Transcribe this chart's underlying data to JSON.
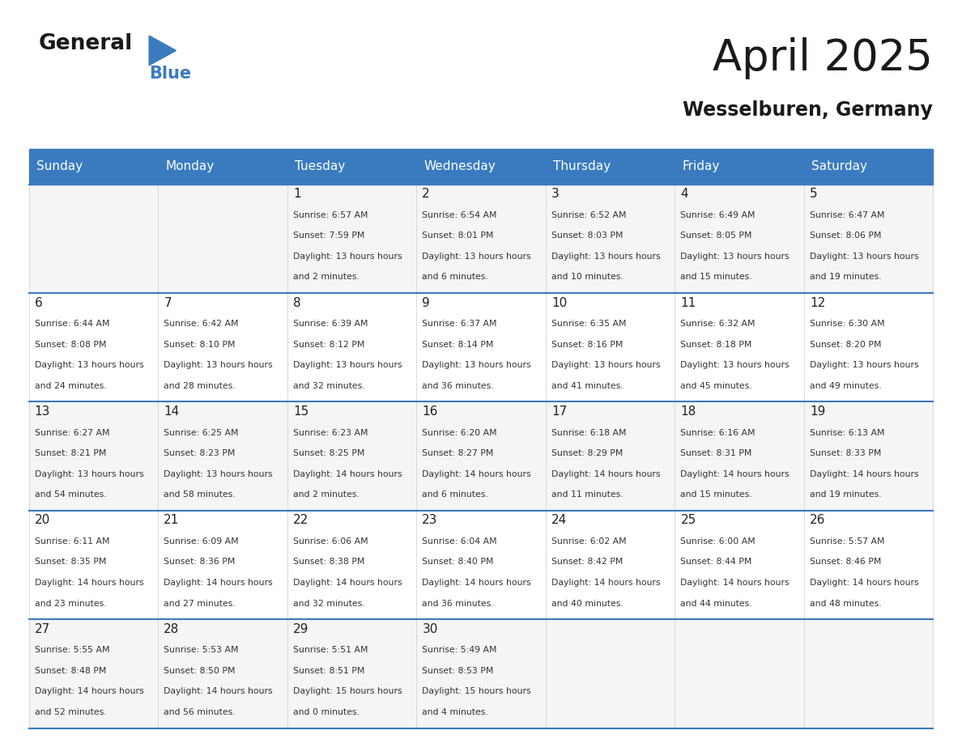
{
  "title": "April 2025",
  "subtitle": "Wesselburen, Germany",
  "header_bg_color": "#3a7bbf",
  "header_text_color": "#ffffff",
  "border_color": "#3a7bbf",
  "day_names": [
    "Sunday",
    "Monday",
    "Tuesday",
    "Wednesday",
    "Thursday",
    "Friday",
    "Saturday"
  ],
  "title_color": "#1a1a1a",
  "subtitle_color": "#1a1a1a",
  "text_color": "#333333",
  "day_num_color": "#222222",
  "row_colors": [
    "#f5f5f5",
    "#ffffff"
  ],
  "weeks": [
    [
      {
        "day": "",
        "sunrise": "",
        "sunset": "",
        "daylight": ""
      },
      {
        "day": "",
        "sunrise": "",
        "sunset": "",
        "daylight": ""
      },
      {
        "day": "1",
        "sunrise": "6:57 AM",
        "sunset": "7:59 PM",
        "daylight": "13 hours and 2 minutes."
      },
      {
        "day": "2",
        "sunrise": "6:54 AM",
        "sunset": "8:01 PM",
        "daylight": "13 hours and 6 minutes."
      },
      {
        "day": "3",
        "sunrise": "6:52 AM",
        "sunset": "8:03 PM",
        "daylight": "13 hours and 10 minutes."
      },
      {
        "day": "4",
        "sunrise": "6:49 AM",
        "sunset": "8:05 PM",
        "daylight": "13 hours and 15 minutes."
      },
      {
        "day": "5",
        "sunrise": "6:47 AM",
        "sunset": "8:06 PM",
        "daylight": "13 hours and 19 minutes."
      }
    ],
    [
      {
        "day": "6",
        "sunrise": "6:44 AM",
        "sunset": "8:08 PM",
        "daylight": "13 hours and 24 minutes."
      },
      {
        "day": "7",
        "sunrise": "6:42 AM",
        "sunset": "8:10 PM",
        "daylight": "13 hours and 28 minutes."
      },
      {
        "day": "8",
        "sunrise": "6:39 AM",
        "sunset": "8:12 PM",
        "daylight": "13 hours and 32 minutes."
      },
      {
        "day": "9",
        "sunrise": "6:37 AM",
        "sunset": "8:14 PM",
        "daylight": "13 hours and 36 minutes."
      },
      {
        "day": "10",
        "sunrise": "6:35 AM",
        "sunset": "8:16 PM",
        "daylight": "13 hours and 41 minutes."
      },
      {
        "day": "11",
        "sunrise": "6:32 AM",
        "sunset": "8:18 PM",
        "daylight": "13 hours and 45 minutes."
      },
      {
        "day": "12",
        "sunrise": "6:30 AM",
        "sunset": "8:20 PM",
        "daylight": "13 hours and 49 minutes."
      }
    ],
    [
      {
        "day": "13",
        "sunrise": "6:27 AM",
        "sunset": "8:21 PM",
        "daylight": "13 hours and 54 minutes."
      },
      {
        "day": "14",
        "sunrise": "6:25 AM",
        "sunset": "8:23 PM",
        "daylight": "13 hours and 58 minutes."
      },
      {
        "day": "15",
        "sunrise": "6:23 AM",
        "sunset": "8:25 PM",
        "daylight": "14 hours and 2 minutes."
      },
      {
        "day": "16",
        "sunrise": "6:20 AM",
        "sunset": "8:27 PM",
        "daylight": "14 hours and 6 minutes."
      },
      {
        "day": "17",
        "sunrise": "6:18 AM",
        "sunset": "8:29 PM",
        "daylight": "14 hours and 11 minutes."
      },
      {
        "day": "18",
        "sunrise": "6:16 AM",
        "sunset": "8:31 PM",
        "daylight": "14 hours and 15 minutes."
      },
      {
        "day": "19",
        "sunrise": "6:13 AM",
        "sunset": "8:33 PM",
        "daylight": "14 hours and 19 minutes."
      }
    ],
    [
      {
        "day": "20",
        "sunrise": "6:11 AM",
        "sunset": "8:35 PM",
        "daylight": "14 hours and 23 minutes."
      },
      {
        "day": "21",
        "sunrise": "6:09 AM",
        "sunset": "8:36 PM",
        "daylight": "14 hours and 27 minutes."
      },
      {
        "day": "22",
        "sunrise": "6:06 AM",
        "sunset": "8:38 PM",
        "daylight": "14 hours and 32 minutes."
      },
      {
        "day": "23",
        "sunrise": "6:04 AM",
        "sunset": "8:40 PM",
        "daylight": "14 hours and 36 minutes."
      },
      {
        "day": "24",
        "sunrise": "6:02 AM",
        "sunset": "8:42 PM",
        "daylight": "14 hours and 40 minutes."
      },
      {
        "day": "25",
        "sunrise": "6:00 AM",
        "sunset": "8:44 PM",
        "daylight": "14 hours and 44 minutes."
      },
      {
        "day": "26",
        "sunrise": "5:57 AM",
        "sunset": "8:46 PM",
        "daylight": "14 hours and 48 minutes."
      }
    ],
    [
      {
        "day": "27",
        "sunrise": "5:55 AM",
        "sunset": "8:48 PM",
        "daylight": "14 hours and 52 minutes."
      },
      {
        "day": "28",
        "sunrise": "5:53 AM",
        "sunset": "8:50 PM",
        "daylight": "14 hours and 56 minutes."
      },
      {
        "day": "29",
        "sunrise": "5:51 AM",
        "sunset": "8:51 PM",
        "daylight": "15 hours and 0 minutes."
      },
      {
        "day": "30",
        "sunrise": "5:49 AM",
        "sunset": "8:53 PM",
        "daylight": "15 hours and 4 minutes."
      },
      {
        "day": "",
        "sunrise": "",
        "sunset": "",
        "daylight": ""
      },
      {
        "day": "",
        "sunrise": "",
        "sunset": "",
        "daylight": ""
      },
      {
        "day": "",
        "sunrise": "",
        "sunset": "",
        "daylight": ""
      }
    ]
  ],
  "logo_general_color": "#1a1a1a",
  "logo_blue_color": "#3a7bbf",
  "logo_triangle_color": "#3a7bbf"
}
